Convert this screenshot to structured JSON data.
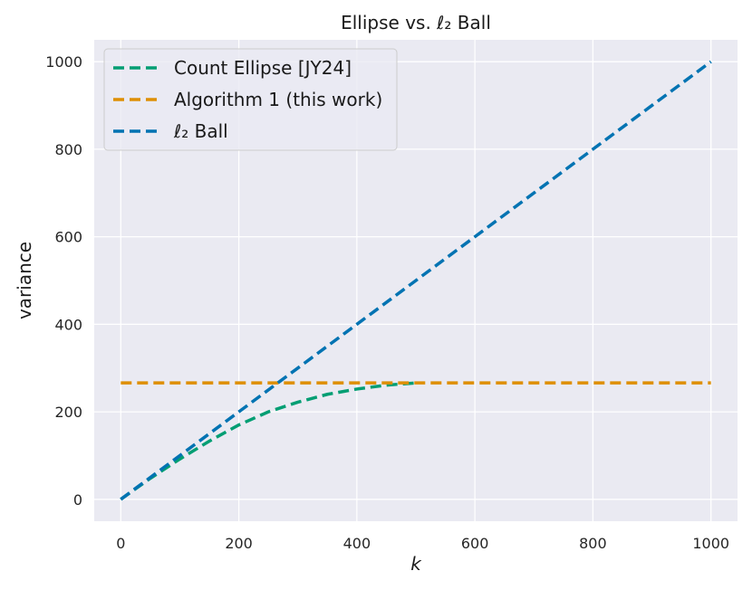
{
  "chart_data": {
    "type": "line",
    "title": "Ellipse vs. ℓ₂ Ball",
    "xlabel": "k",
    "ylabel": "variance",
    "xlim": [
      -45,
      1045
    ],
    "ylim": [
      -50,
      1050
    ],
    "xticks": [
      0,
      200,
      400,
      600,
      800,
      1000
    ],
    "yticks": [
      0,
      200,
      400,
      600,
      800,
      1000
    ],
    "xtick_labels": [
      "0",
      "200",
      "400",
      "600",
      "800",
      "1000"
    ],
    "ytick_labels": [
      "0",
      "200",
      "400",
      "600",
      "800",
      "1000"
    ],
    "grid": true,
    "legend_position": "top-left",
    "series": [
      {
        "name": "Count Ellipse [JY24]",
        "color": "#029e73",
        "style": "dashed",
        "x": [
          0,
          50,
          100,
          150,
          200,
          250,
          300,
          350,
          400,
          450,
          500
        ],
        "y": [
          0,
          48,
          92,
          133,
          170,
          200,
          222,
          240,
          252,
          261,
          266
        ]
      },
      {
        "name": "Algorithm 1 (this work)",
        "color": "#de8f05",
        "style": "dashed",
        "x": [
          0,
          1000
        ],
        "y": [
          266,
          266
        ]
      },
      {
        "name": "ℓ₂ Ball",
        "color": "#0173b2",
        "style": "dashed",
        "x": [
          0,
          1000
        ],
        "y": [
          0,
          1000
        ]
      }
    ]
  }
}
